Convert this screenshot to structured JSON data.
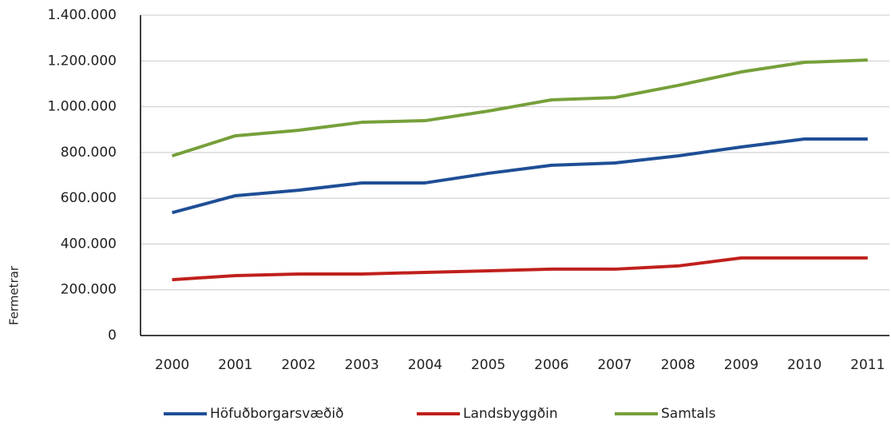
{
  "chart_data": {
    "type": "line",
    "y_label": "Fermetrar",
    "categories": [
      "2000",
      "2001",
      "2002",
      "2003",
      "2004",
      "2005",
      "2006",
      "2007",
      "2008",
      "2009",
      "2010",
      "2011"
    ],
    "series": [
      {
        "name": "Höfuðborgarsvæðið",
        "color": "#1f4e96",
        "values": [
          537000,
          611000,
          635000,
          667000,
          667000,
          709000,
          744000,
          754000,
          785000,
          824000,
          859000,
          859000
        ]
      },
      {
        "name": "Landsbyggðin",
        "color": "#c0201c",
        "values": [
          244000,
          262000,
          269000,
          269000,
          276000,
          283000,
          290000,
          290000,
          304000,
          339000,
          339000,
          339000
        ]
      },
      {
        "name": "Samtals",
        "color": "#76a03a",
        "values": [
          785000,
          873000,
          897000,
          932000,
          939000,
          981000,
          1030000,
          1040000,
          1093000,
          1152000,
          1194000,
          1204000
        ]
      }
    ],
    "ylim": [
      0,
      1400000
    ],
    "yticks": [
      0,
      {
        "value": 200000,
        "label": "200.000"
      },
      {
        "value": 400000,
        "label": "400.000"
      },
      {
        "value": 600000,
        "label": "600.000"
      },
      {
        "value": 800000,
        "label": "800.000"
      },
      {
        "value": 1000000,
        "label": "1.000.000"
      },
      {
        "value": 1200000,
        "label": "1.200.000"
      },
      {
        "value": 1400000,
        "label": "1.400.000"
      }
    ],
    "grid": true,
    "legend": "bottom"
  }
}
